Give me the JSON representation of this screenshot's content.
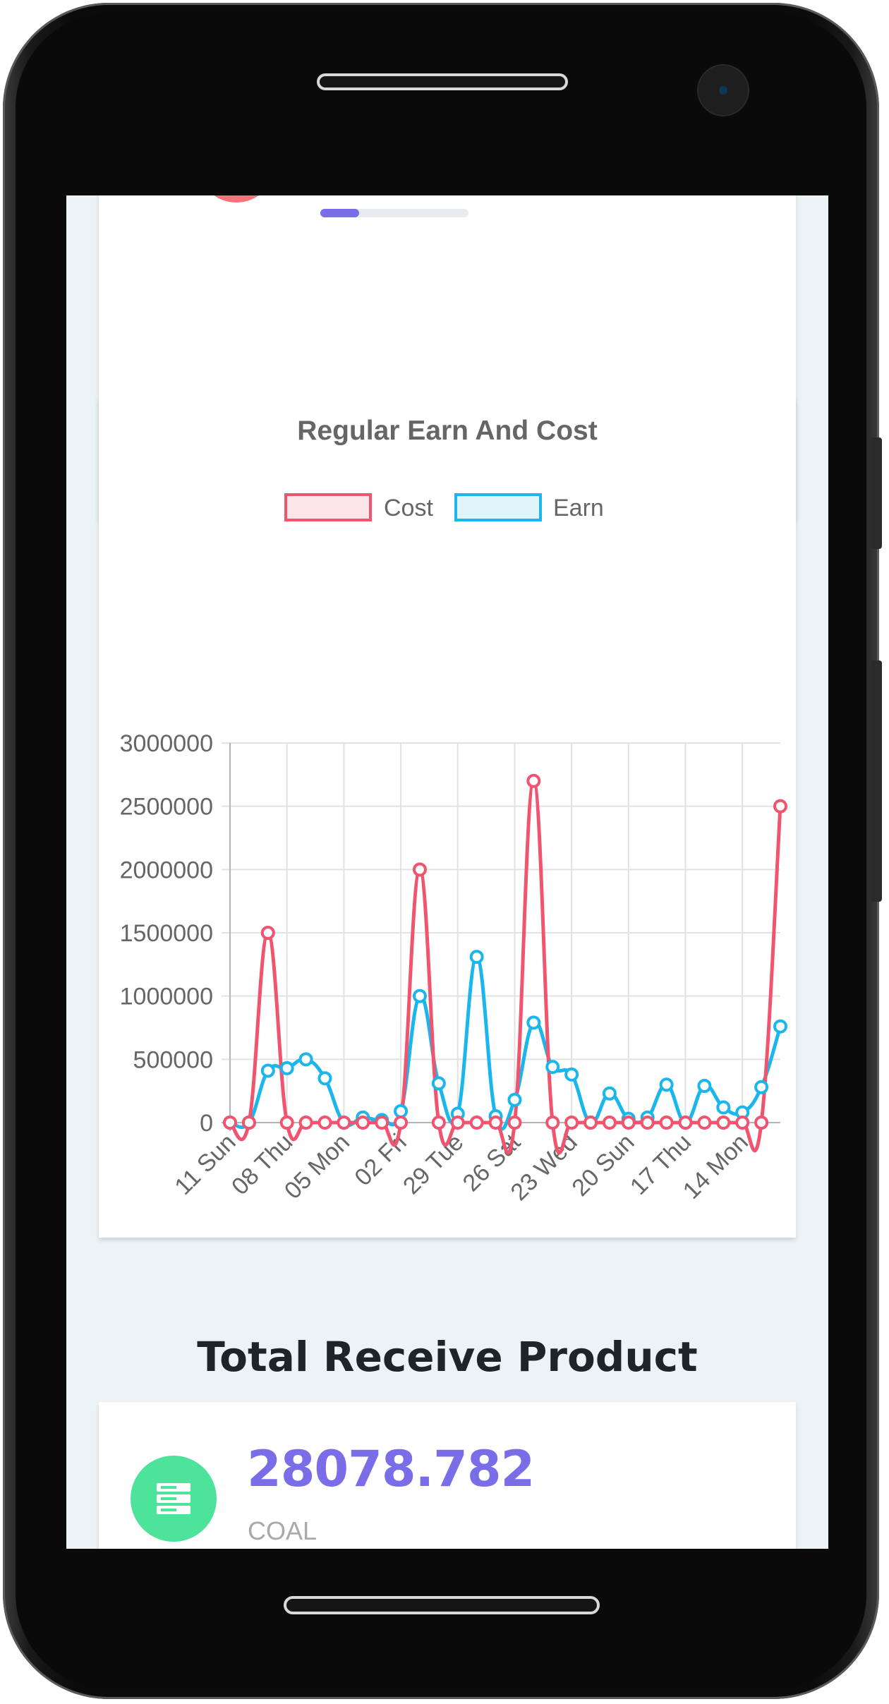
{
  "top_card": {
    "progress_fraction": 0.26,
    "progress_color": "#7a6ee8"
  },
  "chart_data": {
    "type": "line",
    "title": "Regular Earn And Cost",
    "legend_position": "top",
    "grid": true,
    "ylim": [
      0,
      3000000
    ],
    "y_ticks": [
      "0",
      "500000",
      "1000000",
      "1500000",
      "2000000",
      "2500000",
      "3000000"
    ],
    "x_tick_labels": [
      "11 Sun",
      "08 Thu",
      "05 Mon",
      "02 Fri",
      "29 Tue",
      "26 Sat",
      "23 Wed",
      "20 Sun",
      "17 Thu",
      "14 Mon"
    ],
    "series": [
      {
        "name": "Cost",
        "color": "#f0546e",
        "values": [
          0,
          0,
          1500000,
          0,
          0,
          0,
          0,
          0,
          0,
          0,
          2000000,
          0,
          0,
          0,
          0,
          0,
          2700000,
          0,
          0,
          0,
          0,
          0,
          0,
          0,
          0,
          0,
          0,
          0,
          0,
          2500000
        ]
      },
      {
        "name": "Earn",
        "color": "#1bb6ec",
        "values": [
          0,
          0,
          410000,
          430000,
          500000,
          350000,
          0,
          40000,
          20000,
          90000,
          1000000,
          310000,
          70000,
          1310000,
          50000,
          180000,
          790000,
          440000,
          380000,
          0,
          230000,
          30000,
          40000,
          300000,
          0,
          290000,
          120000,
          80000,
          280000,
          760000
        ]
      }
    ]
  },
  "section": {
    "title": "Total Receive Product"
  },
  "receive_card": {
    "icon": "server-stack-icon",
    "icon_bg": "#4ee39a",
    "value": "28078.782",
    "label": "COAL"
  }
}
